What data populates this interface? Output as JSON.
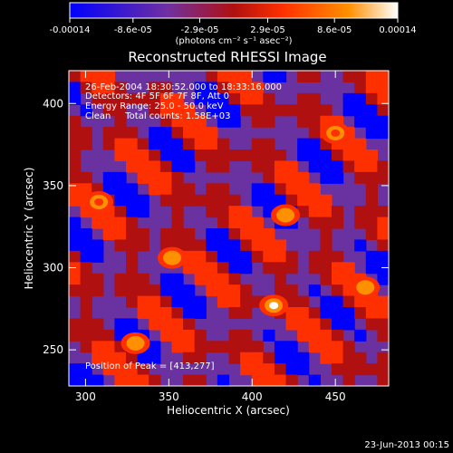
{
  "chart_data": {
    "type": "heatmap",
    "title": "Reconstructed RHESSI Image",
    "xlabel": "Heliocentric X (arcsec)",
    "ylabel": "Heliocentric Y (arcsec)",
    "xlim": [
      290,
      482
    ],
    "ylim": [
      228,
      420
    ],
    "x_ticks": [
      300,
      350,
      400,
      450
    ],
    "y_ticks": [
      250,
      300,
      350,
      400
    ],
    "colorbar": {
      "min": -0.00014,
      "max": 0.00014,
      "tick_labels": [
        "-0.00014",
        "-8.6e-05",
        "-2.9e-05",
        "2.9e-05",
        "8.6e-05",
        "0.00014"
      ],
      "tick_values": [
        -0.00014,
        -8.6e-05,
        -2.9e-05,
        2.9e-05,
        8.6e-05,
        0.00014
      ],
      "units": "(photons cm⁻² s⁻¹ asec⁻²)",
      "colors": [
        "#0000ff",
        "#7030a0",
        "#b01010",
        "#ff3000",
        "#ff9000",
        "#ffffff"
      ]
    },
    "annotations": [
      "26-Feb-2004 18:30:52.000 to 18:33:16.000",
      "Detectors: 4F 5F 6F 7F 8F, Att 0",
      "Energy Range: 25.0 - 50.0 keV",
      "Clean     Total counts: 1.58E+03"
    ],
    "peak_label": "Position of Peak = [413,277]",
    "peak": [
      413,
      277
    ],
    "bright_sources": [
      {
        "x": 413,
        "y": 277,
        "value": 0.00014
      },
      {
        "x": 330,
        "y": 254,
        "value": 0.00012
      },
      {
        "x": 352,
        "y": 306,
        "value": 0.0001
      },
      {
        "x": 420,
        "y": 332,
        "value": 0.00011
      },
      {
        "x": 468,
        "y": 288,
        "value": 0.00012
      },
      {
        "x": 308,
        "y": 340,
        "value": 9e-05
      },
      {
        "x": 450,
        "y": 382,
        "value": 8e-05
      }
    ],
    "grid": false
  },
  "footer": {
    "timestamp": "23-Jun-2013 00:15"
  }
}
